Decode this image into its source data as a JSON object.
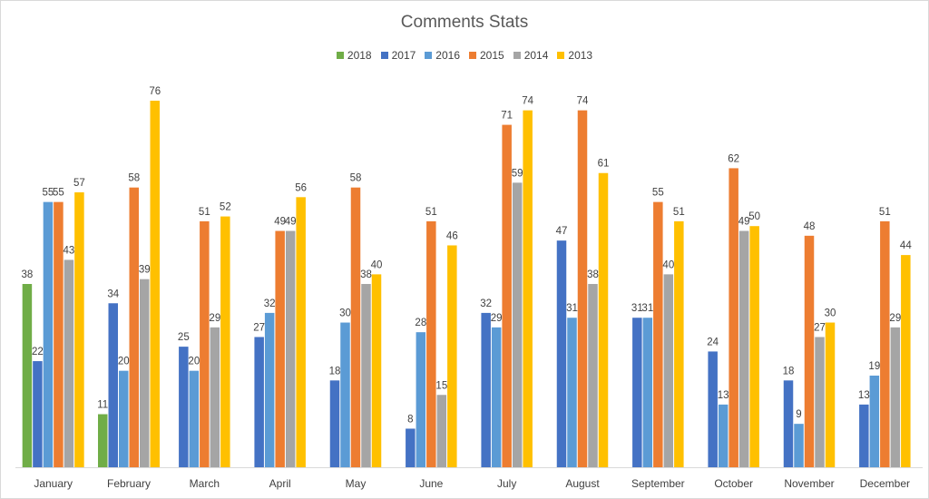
{
  "chart_data": {
    "type": "bar",
    "title": "Comments Stats",
    "xlabel": "",
    "ylabel": "",
    "ylim": [
      0,
      76
    ],
    "grid": false,
    "legend_position": "top",
    "categories": [
      "January",
      "February",
      "March",
      "April",
      "May",
      "June",
      "July",
      "August",
      "September",
      "October",
      "November",
      "December"
    ],
    "series": [
      {
        "name": "2018",
        "color": "#70ad47",
        "values": [
          38,
          11,
          null,
          null,
          null,
          null,
          null,
          null,
          null,
          null,
          null,
          null
        ]
      },
      {
        "name": "2017",
        "color": "#4472c4",
        "values": [
          22,
          34,
          25,
          27,
          18,
          8,
          32,
          47,
          31,
          24,
          18,
          13
        ]
      },
      {
        "name": "2016",
        "color": "#5b9bd5",
        "values": [
          55,
          20,
          20,
          32,
          30,
          28,
          29,
          31,
          31,
          13,
          9,
          19
        ]
      },
      {
        "name": "2015",
        "color": "#ed7d31",
        "values": [
          55,
          58,
          51,
          49,
          58,
          51,
          71,
          74,
          55,
          62,
          48,
          51
        ]
      },
      {
        "name": "2014",
        "color": "#a5a5a5",
        "values": [
          43,
          39,
          29,
          49,
          38,
          15,
          59,
          38,
          40,
          49,
          27,
          29
        ]
      },
      {
        "name": "2013",
        "color": "#ffc000",
        "values": [
          57,
          76,
          52,
          56,
          40,
          46,
          74,
          61,
          51,
          50,
          30,
          44
        ]
      }
    ]
  }
}
